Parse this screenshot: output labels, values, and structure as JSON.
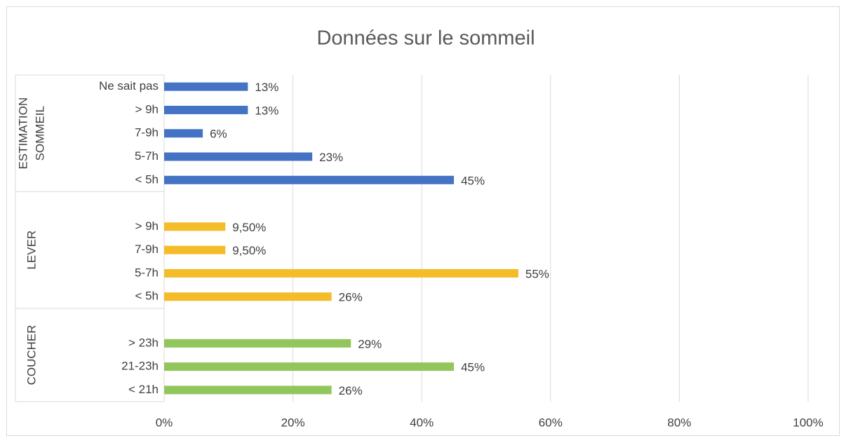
{
  "chart_data": {
    "type": "bar",
    "orientation": "horizontal",
    "title": "Données sur le sommeil",
    "groups": [
      {
        "name": [
          "ESTIMATION",
          "SOMMEIL"
        ],
        "color": "#4472c4",
        "categories": [
          "Ne sait pas",
          "> 9h",
          "7-9h",
          "5-7h",
          "< 5h"
        ],
        "values": [
          13,
          13,
          6,
          23,
          45
        ],
        "value_labels": [
          "13%",
          "13%",
          "6%",
          "23%",
          "45%"
        ]
      },
      {
        "name": [
          "LEVER"
        ],
        "color": "#f5bc2a",
        "categories": [
          null,
          "> 9h",
          "7-9h",
          "5-7h",
          "< 5h"
        ],
        "values": [
          null,
          9.5,
          9.5,
          55,
          26
        ],
        "value_labels": [
          null,
          "9,50%",
          "9,50%",
          "55%",
          "26%"
        ]
      },
      {
        "name": [
          "COUCHER"
        ],
        "color": "#92c65c",
        "categories": [
          null,
          "> 23h",
          "21-23h",
          "< 21h"
        ],
        "values": [
          null,
          29,
          45,
          26
        ],
        "value_labels": [
          null,
          "29%",
          "45%",
          "26%"
        ]
      }
    ],
    "xlim": [
      0,
      100
    ],
    "xticks": [
      {
        "value": 0,
        "label": "0%"
      },
      {
        "value": 20,
        "label": "20%"
      },
      {
        "value": 40,
        "label": "40%"
      },
      {
        "value": 60,
        "label": "60%"
      },
      {
        "value": 80,
        "label": "80%"
      },
      {
        "value": 100,
        "label": "100%"
      }
    ],
    "grid": true
  }
}
